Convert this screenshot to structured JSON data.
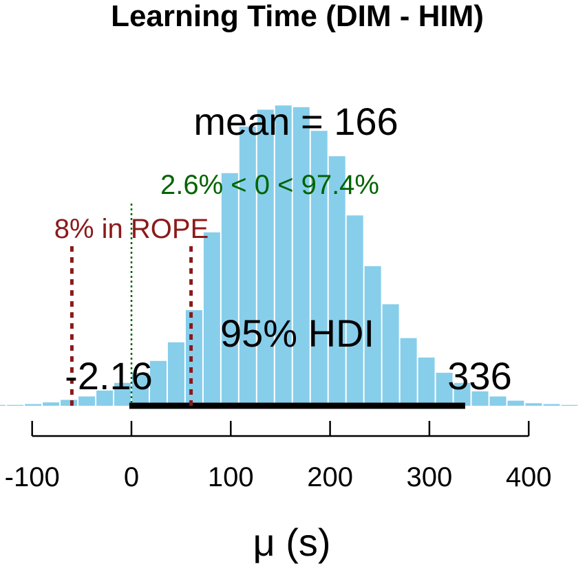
{
  "chart_data": {
    "type": "bar",
    "title": "Learning Time (DIM - HIM)",
    "xlabel": "μ (s)",
    "ylabel": "",
    "xlim": [
      -100,
      450
    ],
    "xticks": [
      -100,
      0,
      100,
      200,
      300,
      400
    ],
    "xtick_labels": [
      "-100",
      "0",
      "100",
      "200",
      "300",
      "400"
    ],
    "bin_width": 18,
    "bins": [
      {
        "x": -135,
        "count": 1
      },
      {
        "x": -117,
        "count": 1
      },
      {
        "x": -99,
        "count": 2
      },
      {
        "x": -81,
        "count": 4
      },
      {
        "x": -63,
        "count": 7
      },
      {
        "x": -45,
        "count": 11
      },
      {
        "x": -27,
        "count": 18
      },
      {
        "x": -9,
        "count": 27
      },
      {
        "x": 9,
        "count": 39
      },
      {
        "x": 27,
        "count": 53
      },
      {
        "x": 45,
        "count": 75
      },
      {
        "x": 63,
        "count": 113
      },
      {
        "x": 81,
        "count": 205
      },
      {
        "x": 99,
        "count": 275
      },
      {
        "x": 117,
        "count": 330
      },
      {
        "x": 135,
        "count": 350
      },
      {
        "x": 153,
        "count": 355
      },
      {
        "x": 171,
        "count": 353
      },
      {
        "x": 189,
        "count": 325
      },
      {
        "x": 207,
        "count": 295
      },
      {
        "x": 225,
        "count": 225
      },
      {
        "x": 243,
        "count": 165
      },
      {
        "x": 261,
        "count": 120
      },
      {
        "x": 279,
        "count": 80
      },
      {
        "x": 297,
        "count": 57
      },
      {
        "x": 315,
        "count": 39
      },
      {
        "x": 333,
        "count": 27
      },
      {
        "x": 351,
        "count": 17
      },
      {
        "x": 369,
        "count": 11
      },
      {
        "x": 387,
        "count": 6
      },
      {
        "x": 405,
        "count": 3
      },
      {
        "x": 423,
        "count": 2
      },
      {
        "x": 441,
        "count": 1
      }
    ],
    "bar_color": "#87ceeb",
    "mean_label": "mean = 166",
    "hdi": {
      "label": "95% HDI",
      "low": -2.16,
      "high": 336,
      "low_label": "-2.16",
      "high_label": "336"
    },
    "comp_value": {
      "value": 0,
      "label": "2.6% < 0 < 97.4%",
      "color": "#006400"
    },
    "rope": {
      "low": -60,
      "high": 60,
      "label": "8% in ROPE",
      "color": "#8b1a1a"
    }
  }
}
